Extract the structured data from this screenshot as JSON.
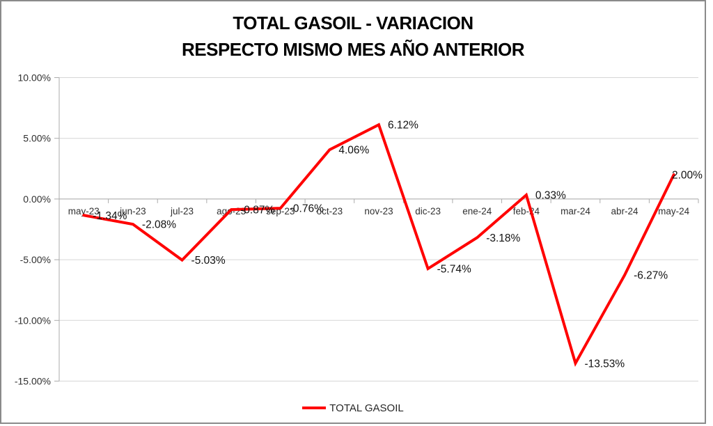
{
  "header": {
    "title_line1": "TOTAL GASOIL - VARIACION",
    "title_line2": "RESPECTO MISMO MES AÑO ANTERIOR"
  },
  "colors": {
    "line": "#FF0000",
    "grid": "#D6D6D6",
    "axis": "#ABABAB",
    "axis_text": "#303030",
    "data_label_text": "#111111",
    "title_text": "#000000",
    "frame_border": "#8A8A8A"
  },
  "chart_data": {
    "type": "line",
    "title": "TOTAL GASOIL - VARIACION RESPECTO MISMO MES AÑO ANTERIOR",
    "categories": [
      "may-23",
      "jun-23",
      "jul-23",
      "ago-23",
      "sep-23",
      "oct-23",
      "nov-23",
      "dic-23",
      "ene-24",
      "feb-24",
      "mar-24",
      "abr-24",
      "may-24"
    ],
    "series": [
      {
        "name": "TOTAL GASOIL",
        "color": "#FF0000",
        "values": [
          -1.34,
          -2.08,
          -5.03,
          -0.87,
          -0.76,
          4.06,
          6.12,
          -5.74,
          -3.18,
          0.33,
          -13.53,
          -6.27,
          2.0
        ]
      }
    ],
    "data_labels": [
      "-1.34%",
      "-2.08%",
      "-5.03%",
      "-0.87%",
      "-0.76%",
      "4.06%",
      "6.12%",
      "-5.74%",
      "-3.18%",
      "0.33%",
      "-13.53%",
      "-6.27%",
      "2.00%"
    ],
    "y_ticks": [
      "10.00%",
      "5.00%",
      "0.00%",
      "-5.00%",
      "-10.00%",
      "-15.00%"
    ],
    "ylim": [
      -15,
      10
    ],
    "y_step": 5,
    "xlabel": "",
    "ylabel": "",
    "grid": true,
    "legend_position": "bottom"
  }
}
